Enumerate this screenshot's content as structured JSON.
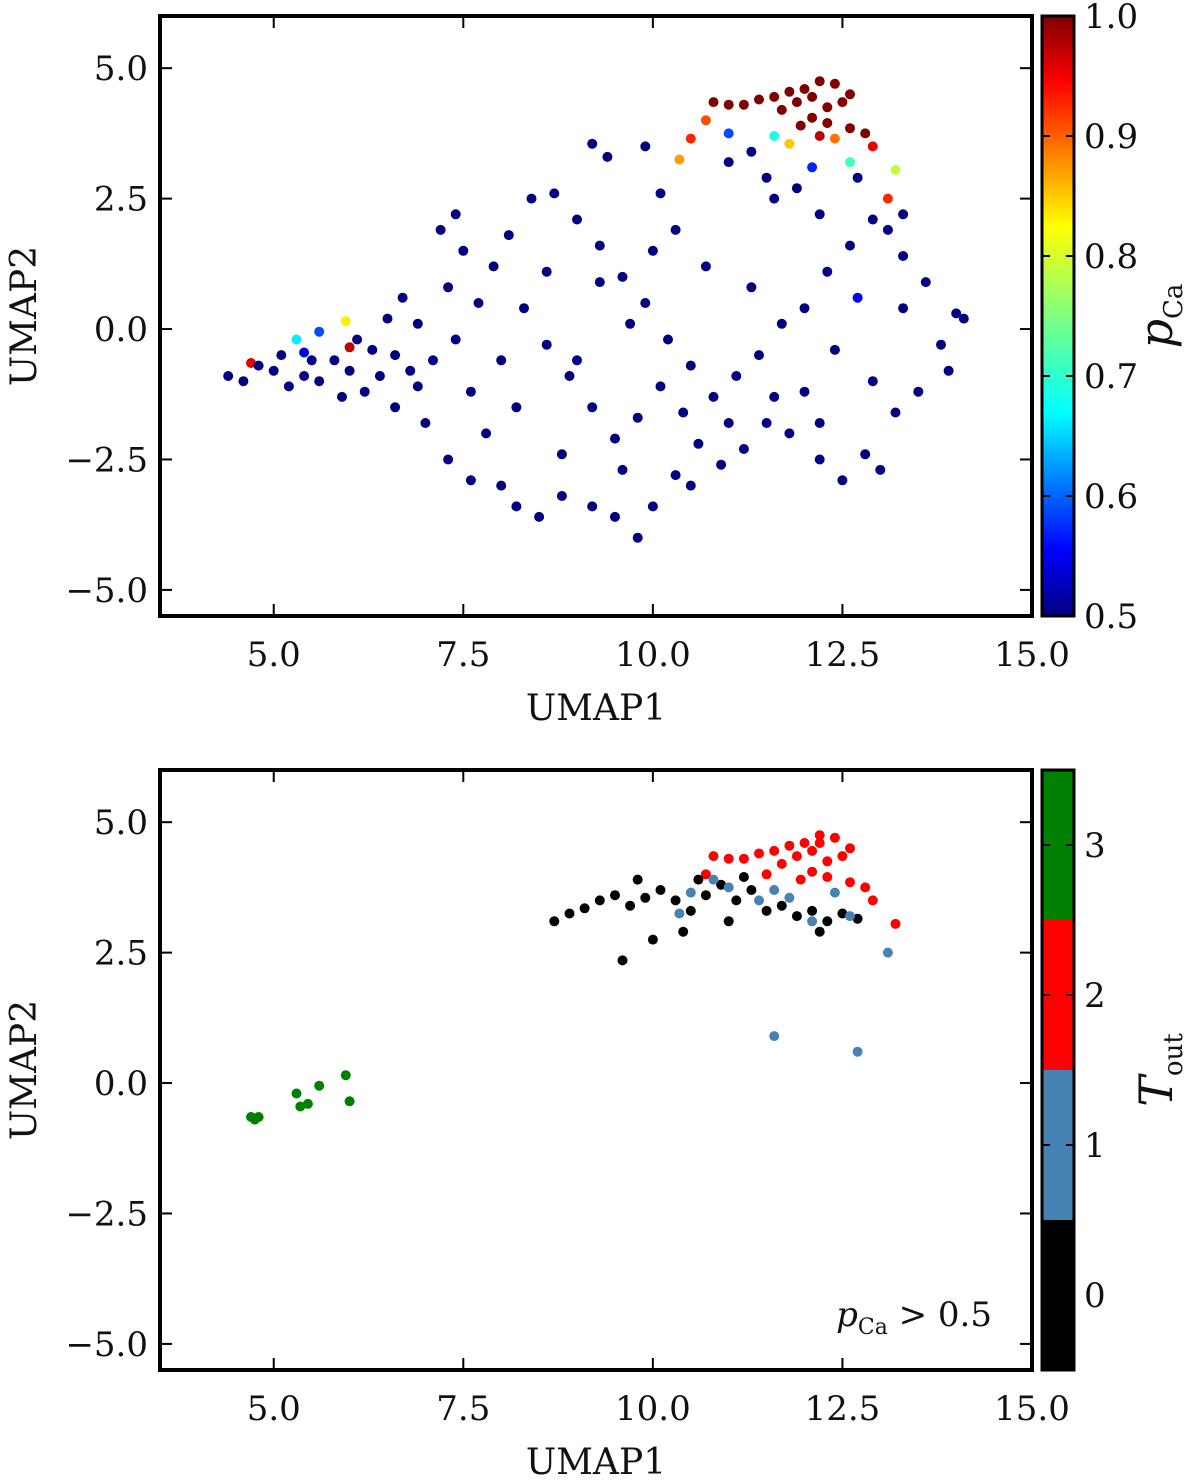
{
  "chart_data": [
    {
      "type": "scatter",
      "panel": "top",
      "xlabel": "UMAP1",
      "ylabel": "UMAP2",
      "xlim": [
        3.5,
        15.0
      ],
      "ylim": [
        -5.5,
        6.0
      ],
      "xticks": [
        5.0,
        7.5,
        10.0,
        12.5,
        15.0
      ],
      "xtick_labels": [
        "5.0",
        "7.5",
        "10.0",
        "12.5",
        "15.0"
      ],
      "yticks": [
        -5.0,
        -2.5,
        0.0,
        2.5,
        5.0
      ],
      "ytick_labels": [
        "−5.0",
        "−2.5",
        "0.0",
        "2.5",
        "5.0"
      ],
      "colorbar": {
        "label_main": "p",
        "label_sub": "Ca",
        "range": [
          0.5,
          1.0
        ],
        "ticks": [
          "0.5",
          "0.6",
          "0.7",
          "0.8",
          "0.9",
          "1.0"
        ],
        "colormap": "jet"
      },
      "points": [
        [
          10.8,
          4.35,
          1.0
        ],
        [
          11.0,
          4.3,
          1.0
        ],
        [
          11.2,
          4.3,
          1.0
        ],
        [
          11.4,
          4.4,
          1.0
        ],
        [
          11.6,
          4.45,
          1.0
        ],
        [
          11.8,
          4.55,
          1.0
        ],
        [
          12.0,
          4.6,
          1.0
        ],
        [
          12.2,
          4.75,
          1.0
        ],
        [
          12.4,
          4.7,
          1.0
        ],
        [
          12.6,
          4.5,
          1.0
        ],
        [
          11.7,
          4.2,
          1.0
        ],
        [
          11.9,
          4.35,
          1.0
        ],
        [
          12.1,
          4.45,
          1.0
        ],
        [
          12.3,
          4.25,
          1.0
        ],
        [
          12.5,
          4.35,
          1.0
        ],
        [
          12.1,
          4.05,
          1.0
        ],
        [
          12.3,
          3.95,
          1.0
        ],
        [
          11.95,
          3.9,
          1.0
        ],
        [
          12.6,
          3.85,
          1.0
        ],
        [
          12.8,
          3.75,
          1.0
        ],
        [
          12.2,
          3.7,
          0.97
        ],
        [
          12.9,
          3.5,
          0.95
        ],
        [
          13.1,
          2.5,
          0.92
        ],
        [
          10.5,
          3.65,
          0.92
        ],
        [
          10.7,
          4.0,
          0.9
        ],
        [
          12.4,
          3.65,
          0.88
        ],
        [
          10.35,
          3.25,
          0.86
        ],
        [
          11.8,
          3.55,
          0.84
        ],
        [
          13.2,
          3.05,
          0.78
        ],
        [
          5.95,
          0.15,
          0.82
        ],
        [
          11.6,
          3.7,
          0.7
        ],
        [
          5.3,
          -0.2,
          0.68
        ],
        [
          12.6,
          3.2,
          0.72
        ],
        [
          11.0,
          3.75,
          0.6
        ],
        [
          12.1,
          3.1,
          0.58
        ],
        [
          12.7,
          0.6,
          0.56
        ],
        [
          5.6,
          -0.05,
          0.6
        ],
        [
          5.4,
          -0.45,
          0.55
        ],
        [
          6.0,
          -0.35,
          0.97
        ],
        [
          4.7,
          -0.65,
          0.95
        ],
        [
          4.4,
          -0.9,
          0.5
        ],
        [
          4.6,
          -1.0,
          0.5
        ],
        [
          4.8,
          -0.7,
          0.5
        ],
        [
          5.0,
          -0.8,
          0.5
        ],
        [
          5.2,
          -1.1,
          0.5
        ],
        [
          5.4,
          -0.9,
          0.5
        ],
        [
          5.6,
          -1.0,
          0.5
        ],
        [
          5.8,
          -0.6,
          0.5
        ],
        [
          6.0,
          -0.8,
          0.5
        ],
        [
          6.2,
          -1.2,
          0.5
        ],
        [
          6.4,
          -0.9,
          0.5
        ],
        [
          6.6,
          -0.5,
          0.5
        ],
        [
          6.8,
          -0.8,
          0.5
        ],
        [
          5.1,
          -0.5,
          0.5
        ],
        [
          5.5,
          -0.6,
          0.5
        ],
        [
          5.9,
          -1.3,
          0.5
        ],
        [
          6.1,
          -0.2,
          0.5
        ],
        [
          6.3,
          -0.4,
          0.5
        ],
        [
          6.5,
          0.2,
          0.5
        ],
        [
          6.7,
          0.6,
          0.5
        ],
        [
          6.9,
          0.1,
          0.5
        ],
        [
          7.1,
          -0.6,
          0.5
        ],
        [
          7.3,
          0.8,
          0.5
        ],
        [
          7.5,
          1.5,
          0.5
        ],
        [
          7.7,
          0.5,
          0.5
        ],
        [
          7.2,
          1.9,
          0.5
        ],
        [
          7.4,
          2.2,
          0.5
        ],
        [
          7.6,
          -1.2,
          0.5
        ],
        [
          7.8,
          -2.0,
          0.5
        ],
        [
          7.0,
          -1.8,
          0.5
        ],
        [
          6.6,
          -1.5,
          0.5
        ],
        [
          7.3,
          -2.5,
          0.5
        ],
        [
          7.6,
          -2.9,
          0.5
        ],
        [
          8.0,
          -3.0,
          0.5
        ],
        [
          8.2,
          -3.4,
          0.5
        ],
        [
          8.5,
          -3.6,
          0.5
        ],
        [
          8.8,
          -3.2,
          0.5
        ],
        [
          9.2,
          -3.4,
          0.5
        ],
        [
          9.5,
          -3.6,
          0.5
        ],
        [
          9.8,
          -4.0,
          0.5
        ],
        [
          10.0,
          -3.4,
          0.5
        ],
        [
          10.3,
          -2.8,
          0.5
        ],
        [
          10.6,
          -2.2,
          0.5
        ],
        [
          10.9,
          -2.6,
          0.5
        ],
        [
          11.2,
          -2.3,
          0.5
        ],
        [
          11.5,
          -1.8,
          0.5
        ],
        [
          11.8,
          -2.0,
          0.5
        ],
        [
          12.2,
          -2.5,
          0.5
        ],
        [
          12.5,
          -2.9,
          0.5
        ],
        [
          12.8,
          -2.4,
          0.5
        ],
        [
          13.0,
          -2.7,
          0.5
        ],
        [
          13.2,
          -1.6,
          0.5
        ],
        [
          13.5,
          -1.2,
          0.5
        ],
        [
          13.8,
          -0.3,
          0.5
        ],
        [
          14.0,
          0.3,
          0.5
        ],
        [
          14.1,
          0.2,
          0.5
        ],
        [
          13.6,
          0.9,
          0.5
        ],
        [
          13.3,
          1.4,
          0.5
        ],
        [
          13.1,
          1.9,
          0.5
        ],
        [
          12.9,
          2.1,
          0.5
        ],
        [
          12.6,
          1.6,
          0.5
        ],
        [
          12.3,
          1.1,
          0.5
        ],
        [
          12.0,
          0.4,
          0.5
        ],
        [
          11.7,
          0.1,
          0.5
        ],
        [
          11.4,
          -0.5,
          0.5
        ],
        [
          11.1,
          -0.9,
          0.5
        ],
        [
          10.8,
          -1.3,
          0.5
        ],
        [
          10.5,
          -0.7,
          0.5
        ],
        [
          10.2,
          -0.2,
          0.5
        ],
        [
          9.9,
          0.5,
          0.5
        ],
        [
          9.6,
          1.0,
          0.5
        ],
        [
          9.3,
          1.6,
          0.5
        ],
        [
          9.0,
          2.1,
          0.5
        ],
        [
          8.7,
          2.6,
          0.5
        ],
        [
          8.4,
          2.5,
          0.5
        ],
        [
          8.1,
          1.8,
          0.5
        ],
        [
          7.9,
          1.2,
          0.5
        ],
        [
          8.3,
          0.4,
          0.5
        ],
        [
          8.6,
          -0.3,
          0.5
        ],
        [
          8.9,
          -0.9,
          0.5
        ],
        [
          9.2,
          -1.5,
          0.5
        ],
        [
          9.5,
          -2.1,
          0.5
        ],
        [
          9.8,
          -1.7,
          0.5
        ],
        [
          10.1,
          -1.1,
          0.5
        ],
        [
          10.4,
          -1.6,
          0.5
        ],
        [
          9.4,
          3.3,
          0.5
        ],
        [
          9.2,
          3.55,
          0.5
        ],
        [
          9.9,
          3.5,
          0.5
        ],
        [
          10.1,
          2.6,
          0.5
        ],
        [
          11.3,
          3.4,
          0.5
        ],
        [
          11.5,
          2.9,
          0.5
        ],
        [
          11.9,
          2.7,
          0.5
        ],
        [
          12.2,
          2.2,
          0.5
        ],
        [
          12.7,
          2.9,
          0.5
        ],
        [
          13.3,
          2.2,
          0.5
        ],
        [
          11.0,
          3.2,
          0.5
        ],
        [
          11.6,
          2.5,
          0.5
        ],
        [
          10.3,
          1.9,
          0.5
        ],
        [
          9.7,
          0.1,
          0.5
        ],
        [
          9.0,
          -0.6,
          0.5
        ],
        [
          8.2,
          -1.5,
          0.5
        ],
        [
          7.4,
          -0.2,
          0.5
        ],
        [
          6.9,
          -1.1,
          0.5
        ],
        [
          12.0,
          -1.2,
          0.5
        ],
        [
          12.4,
          -0.4,
          0.5
        ],
        [
          12.9,
          -1.0,
          0.5
        ],
        [
          13.3,
          0.4,
          0.5
        ],
        [
          13.9,
          -0.8,
          0.5
        ],
        [
          11.3,
          0.8,
          0.5
        ],
        [
          10.7,
          1.2,
          0.5
        ],
        [
          10.0,
          1.5,
          0.5
        ],
        [
          9.3,
          0.9,
          0.5
        ],
        [
          8.6,
          1.1,
          0.5
        ],
        [
          8.0,
          -0.6,
          0.5
        ],
        [
          8.8,
          -2.4,
          0.5
        ],
        [
          9.6,
          -2.7,
          0.5
        ],
        [
          10.5,
          -3.0,
          0.5
        ],
        [
          11.0,
          -1.8,
          0.5
        ],
        [
          11.6,
          -1.3,
          0.5
        ],
        [
          12.2,
          -1.8,
          0.5
        ]
      ]
    },
    {
      "type": "scatter",
      "panel": "bottom",
      "xlabel": "UMAP1",
      "ylabel": "UMAP2",
      "xlim": [
        3.5,
        15.0
      ],
      "ylim": [
        -5.5,
        6.0
      ],
      "xticks": [
        5.0,
        7.5,
        10.0,
        12.5,
        15.0
      ],
      "xtick_labels": [
        "5.0",
        "7.5",
        "10.0",
        "12.5",
        "15.0"
      ],
      "yticks": [
        -5.0,
        -2.5,
        0.0,
        2.5,
        5.0
      ],
      "ytick_labels": [
        "−5.0",
        "−2.5",
        "0.0",
        "2.5",
        "5.0"
      ],
      "annotation": {
        "main": "p",
        "sub": "Ca",
        "rest": " > 0.5"
      },
      "colorbar": {
        "label_main": "T",
        "label_sub": "out",
        "range": [
          -0.5,
          3.5
        ],
        "ticks": [
          "0",
          "1",
          "2",
          "3"
        ],
        "colors": [
          "#000000",
          "#4682b4",
          "#ff0000",
          "#008000"
        ]
      },
      "points": [
        [
          4.7,
          -0.65,
          3
        ],
        [
          4.75,
          -0.7,
          3
        ],
        [
          4.8,
          -0.65,
          3
        ],
        [
          5.3,
          -0.2,
          3
        ],
        [
          5.35,
          -0.45,
          3
        ],
        [
          5.45,
          -0.4,
          3
        ],
        [
          5.6,
          -0.05,
          3
        ],
        [
          5.95,
          0.15,
          3
        ],
        [
          6.0,
          -0.35,
          3
        ],
        [
          10.8,
          4.35,
          2
        ],
        [
          11.0,
          4.3,
          2
        ],
        [
          11.2,
          4.3,
          2
        ],
        [
          11.4,
          4.4,
          2
        ],
        [
          11.6,
          4.45,
          2
        ],
        [
          11.8,
          4.55,
          2
        ],
        [
          12.0,
          4.6,
          2
        ],
        [
          12.2,
          4.75,
          2
        ],
        [
          12.4,
          4.7,
          2
        ],
        [
          12.6,
          4.5,
          2
        ],
        [
          11.7,
          4.2,
          2
        ],
        [
          11.9,
          4.35,
          2
        ],
        [
          12.1,
          4.45,
          2
        ],
        [
          12.3,
          4.25,
          2
        ],
        [
          12.5,
          4.35,
          2
        ],
        [
          12.1,
          4.05,
          2
        ],
        [
          12.3,
          3.95,
          2
        ],
        [
          11.95,
          3.9,
          2
        ],
        [
          12.6,
          3.85,
          2
        ],
        [
          12.8,
          3.75,
          2
        ],
        [
          12.9,
          3.5,
          2
        ],
        [
          13.2,
          3.05,
          2
        ],
        [
          10.7,
          4.0,
          2
        ],
        [
          12.2,
          4.6,
          2
        ],
        [
          11.5,
          4.0,
          2
        ],
        [
          8.7,
          3.1,
          0
        ],
        [
          8.9,
          3.25,
          0
        ],
        [
          9.1,
          3.35,
          0
        ],
        [
          9.3,
          3.5,
          0
        ],
        [
          9.5,
          3.6,
          0
        ],
        [
          9.7,
          3.4,
          0
        ],
        [
          9.9,
          3.55,
          0
        ],
        [
          10.1,
          3.7,
          0
        ],
        [
          10.3,
          3.5,
          0
        ],
        [
          10.5,
          3.3,
          0
        ],
        [
          10.7,
          3.6,
          0
        ],
        [
          10.9,
          3.8,
          0
        ],
        [
          11.1,
          3.5,
          0
        ],
        [
          11.3,
          3.7,
          0
        ],
        [
          11.5,
          3.3,
          0
        ],
        [
          11.7,
          3.4,
          0
        ],
        [
          11.9,
          3.2,
          0
        ],
        [
          12.1,
          3.3,
          0
        ],
        [
          12.3,
          3.1,
          0
        ],
        [
          12.5,
          3.25,
          0
        ],
        [
          12.7,
          3.15,
          0
        ],
        [
          9.6,
          2.35,
          0
        ],
        [
          10.0,
          2.75,
          0
        ],
        [
          10.4,
          2.9,
          0
        ],
        [
          11.0,
          3.1,
          0
        ],
        [
          12.2,
          2.9,
          0
        ],
        [
          9.8,
          3.9,
          0
        ],
        [
          10.6,
          3.9,
          0
        ],
        [
          11.2,
          3.95,
          0
        ],
        [
          10.35,
          3.25,
          1
        ],
        [
          10.5,
          3.65,
          1
        ],
        [
          10.8,
          3.9,
          1
        ],
        [
          11.0,
          3.75,
          1
        ],
        [
          11.6,
          3.7,
          1
        ],
        [
          11.8,
          3.55,
          1
        ],
        [
          12.1,
          3.1,
          1
        ],
        [
          12.4,
          3.65,
          1
        ],
        [
          12.6,
          3.2,
          1
        ],
        [
          13.1,
          2.5,
          1
        ],
        [
          11.6,
          0.9,
          1
        ],
        [
          12.7,
          0.6,
          1
        ],
        [
          11.4,
          3.5,
          1
        ]
      ]
    }
  ]
}
